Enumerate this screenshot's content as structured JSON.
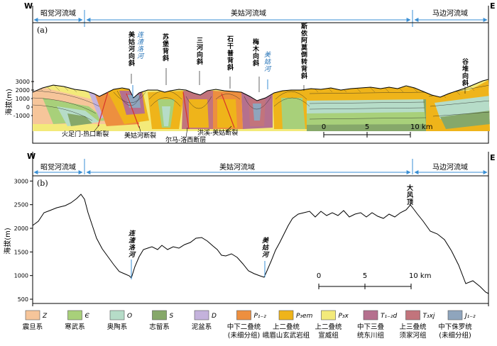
{
  "directions": {
    "west": "W",
    "east": "E"
  },
  "basins": {
    "left": "昭觉河流域",
    "middle": "美姑河流域",
    "right": "马边河流域"
  },
  "panel_a": {
    "label": "(a)",
    "y_axis_title": "海拔(m)",
    "y_ticks": [
      "3000",
      "2000",
      "1000",
      "0",
      "-1000"
    ],
    "structures": [
      {
        "name": "美姑河向斜"
      },
      {
        "name": "连渣洛河"
      },
      {
        "name": "苏堡背斜"
      },
      {
        "name": "三河向斜"
      },
      {
        "name": "石干普背斜"
      },
      {
        "name": "梅木向斜"
      },
      {
        "name": "美姑河"
      },
      {
        "name": "斯依阿莫倒转背斜"
      },
      {
        "name": "谷堆向斜"
      }
    ],
    "faults": [
      {
        "name": "火足门-热口断裂"
      },
      {
        "name": "美姑河断裂"
      },
      {
        "name": "尔马-洛西断层"
      },
      {
        "name": "洪溪-美姑断裂"
      }
    ],
    "scale": {
      "labels": [
        "0",
        "5",
        "10 km"
      ]
    }
  },
  "panel_b": {
    "label": "(b)",
    "y_axis_title": "海拔(m)",
    "y_ticks": [
      "3000",
      "2500",
      "2000",
      "1500",
      "1000",
      "500"
    ],
    "y_range": [
      500,
      3200
    ],
    "annotations": [
      {
        "name": "连渣洛河"
      },
      {
        "name": "美姑河"
      },
      {
        "name": "大风顶"
      }
    ],
    "scale": {
      "labels": [
        "0",
        "5",
        "10 km"
      ]
    }
  },
  "legend": [
    {
      "code": "Z",
      "name": "震旦系",
      "color": "#f6c59a"
    },
    {
      "code": "Є",
      "name": "寒武系",
      "color": "#a8d07a"
    },
    {
      "code": "O",
      "name": "奥陶系",
      "color": "#b6dcc8"
    },
    {
      "code": "S",
      "name": "志留系",
      "color": "#86a86a"
    },
    {
      "code": "D",
      "name": "泥盆系",
      "color": "#c4b2dc"
    },
    {
      "code": "P₁₋₂",
      "name": "中下二叠统",
      "name2": "(未细分组)",
      "color": "#ed8f3f"
    },
    {
      "code": "P₃em",
      "name": "上二叠统",
      "name2": "峨眉山玄武岩组",
      "color": "#efb41a"
    },
    {
      "code": "P₃x",
      "name": "上二叠统",
      "name2": "宣威组",
      "color": "#f3ea7a"
    },
    {
      "code": "T₁₋₂d",
      "name": "中下三叠",
      "name2": "统东川组",
      "color": "#b5708e"
    },
    {
      "code": "T₃xj",
      "name": "上三叠统",
      "name2": "须家河组",
      "color": "#c2747c"
    },
    {
      "code": "J₁₋₂",
      "name": "中下侏罗统",
      "name2": "(未细分组)",
      "color": "#8fa5bd"
    }
  ]
}
